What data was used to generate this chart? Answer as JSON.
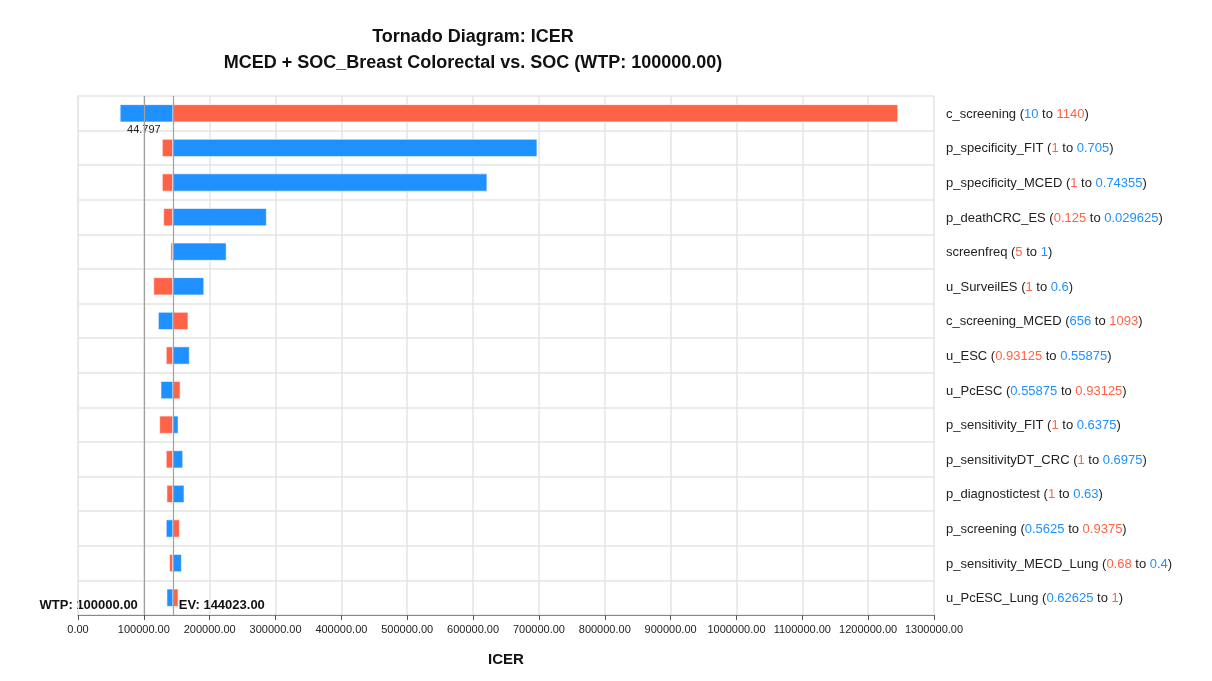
{
  "chart_data": {
    "type": "bar",
    "orientation": "horizontal",
    "title": "Tornado Diagram: ICER",
    "subtitle": "MCED + SOC_Breast Colorectal vs. SOC (WTP: 100000.00)",
    "xlabel": "ICER",
    "categories": [
      "c_screening (10 to 1140)",
      "p_specificity_FIT (1 to 0.705)",
      "p_specificity_MCED (1 to 0.74355)",
      "p_deathCRC_ES (0.125 to 0.029625)",
      "screenfreq (5 to 1)",
      "u_SurveilES (1 to 0.6)",
      "c_screening_MCED (656 to 1093)",
      "u_ESC (0.93125 to 0.55875)",
      "u_PcESC (0.55875 to 0.93125)",
      "p_sensitivity_FIT (1 to 0.6375)",
      "p_sensitivityDT_CRC (1 to 0.6975)",
      "p_diagnostictest (1 to 0.63)",
      "p_screening (0.5625 to 0.9375)",
      "p_sensitivity_MECD_Lung (0.68 to 0.4)",
      "u_PcESC_Lung (0.62625 to 1)"
    ],
    "series": [
      {
        "color": "#ff6347",
        "base": [
          144023,
          144023,
          144023,
          144023,
          144023,
          144023,
          144023,
          144023,
          144023,
          144023,
          144023,
          144023,
          144023,
          144023,
          144023
        ],
        "values": [
          1101000,
          -16000,
          -16000,
          -14000,
          -3000,
          -29000,
          23000,
          -10000,
          11000,
          -20000,
          -10000,
          -9000,
          10000,
          -5000,
          8000
        ]
      },
      {
        "color": "#1e90ff",
        "base": [
          144023,
          144023,
          144023,
          144023,
          144023,
          144023,
          144023,
          144023,
          144023,
          144023,
          144023,
          144023,
          144023,
          144023,
          144023
        ],
        "values": [
          -80000,
          553000,
          477000,
          142000,
          81000,
          47000,
          -22000,
          25000,
          -18000,
          8000,
          15000,
          17000,
          -10000,
          13000,
          -9000
        ]
      }
    ],
    "xlim": [
      0,
      1300000
    ],
    "xticks": [
      {
        "value": 0,
        "label": "0.00"
      },
      {
        "value": 100000,
        "label": "100000.00"
      },
      {
        "value": 200000,
        "label": "200000.00"
      },
      {
        "value": 300000,
        "label": "300000.00"
      },
      {
        "value": 400000,
        "label": "400000.00"
      },
      {
        "value": 500000,
        "label": "500000.00"
      },
      {
        "value": 600000,
        "label": "600000.00"
      },
      {
        "value": 700000,
        "label": "700000.00"
      },
      {
        "value": 800000,
        "label": "800000.00"
      },
      {
        "value": 900000,
        "label": "900000.00"
      },
      {
        "value": 1000000,
        "label": "1000000.00"
      },
      {
        "value": 1100000,
        "label": "1100000.00"
      },
      {
        "value": 1200000,
        "label": "1200000.00"
      },
      {
        "value": 1300000,
        "label": "1300000.00"
      }
    ],
    "ref_lines": [
      {
        "axis": "x",
        "value": 100000,
        "label": "WTP: 100000.00",
        "color": "#a0a0a0"
      },
      {
        "axis": "x",
        "value": 144023,
        "label": "EV: 144023.00",
        "color": "#a0a0a0"
      }
    ],
    "annotations": [
      {
        "text": "44.797",
        "x": 100000,
        "y": "c_screening (10 to 1140)"
      }
    ],
    "grid": true
  }
}
